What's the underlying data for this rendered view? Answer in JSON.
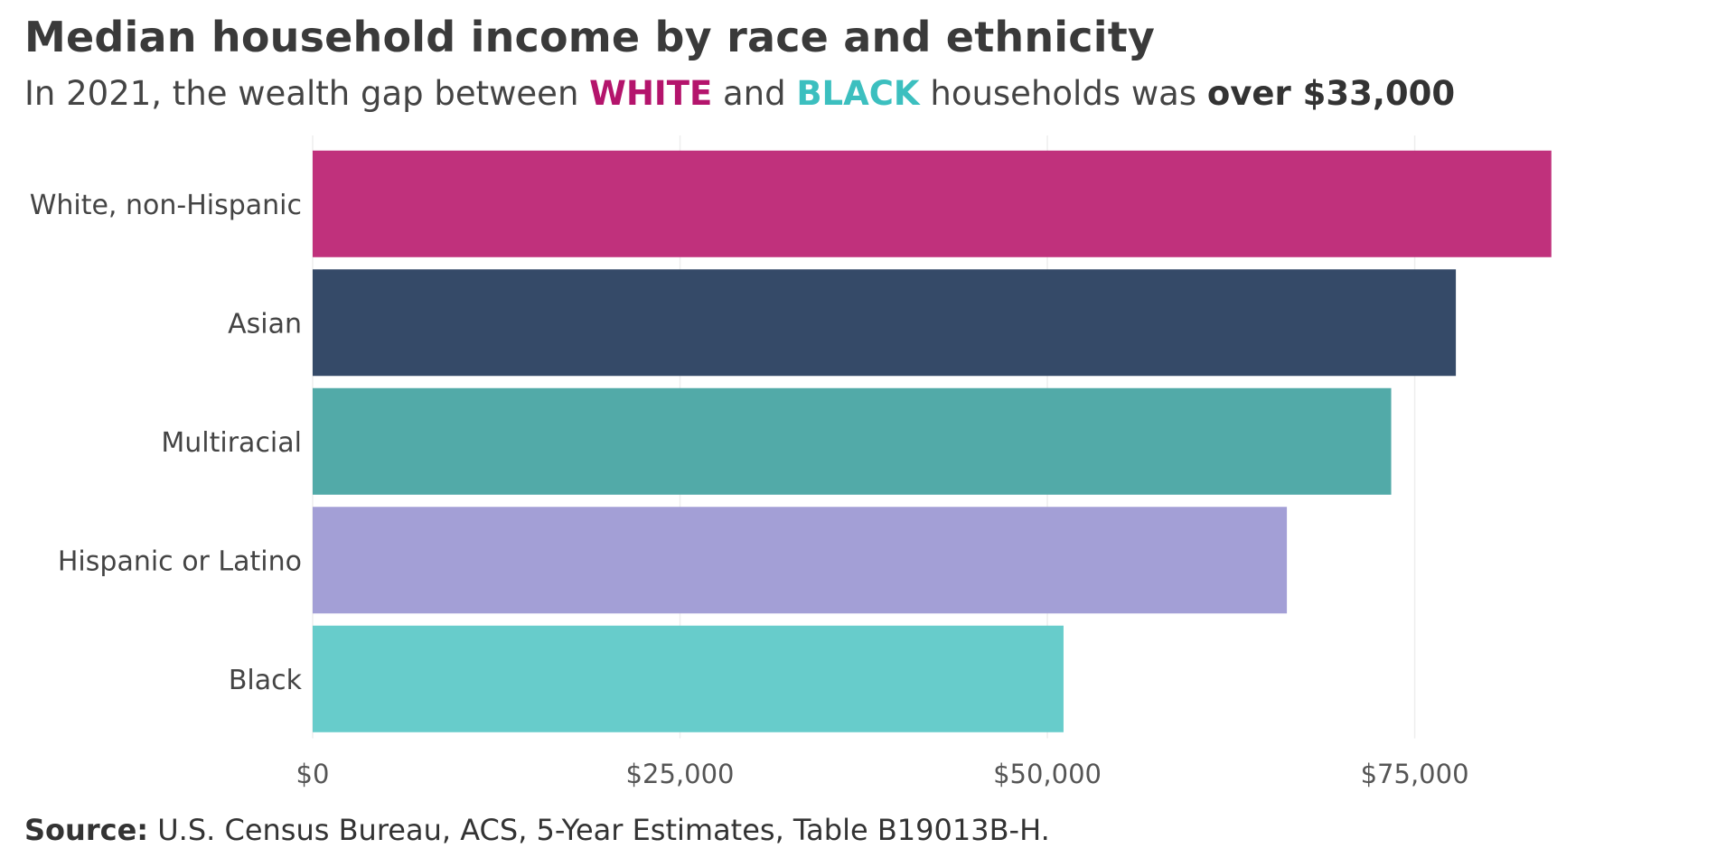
{
  "title": "Median household income by race and ethnicity",
  "subtitle": {
    "prefix": "In 2021, the wealth gap between ",
    "white": "WHITE",
    "and": " and ",
    "black": "BLACK",
    "middle": " households was ",
    "emph": "over $33,000"
  },
  "source": {
    "label": "Source:",
    "text": " U.S. Census Bureau, ACS, 5-Year Estimates, Table B19013B-H."
  },
  "chart_data": {
    "type": "bar",
    "orientation": "horizontal",
    "categories": [
      "White, non-Hispanic",
      "Asian",
      "Multiracial",
      "Hispanic or Latino",
      "Black"
    ],
    "values": [
      84300,
      77800,
      73400,
      66300,
      51100
    ],
    "colors": [
      "#c0317c",
      "#354a68",
      "#52aaa8",
      "#a39fd6",
      "#67cccb"
    ],
    "xticks": [
      0,
      25000,
      50000,
      75000
    ],
    "xtick_labels": [
      "$0",
      "$25,000",
      "$50,000",
      "$75,000"
    ],
    "xlim": [
      0,
      92000
    ],
    "grid": true
  }
}
